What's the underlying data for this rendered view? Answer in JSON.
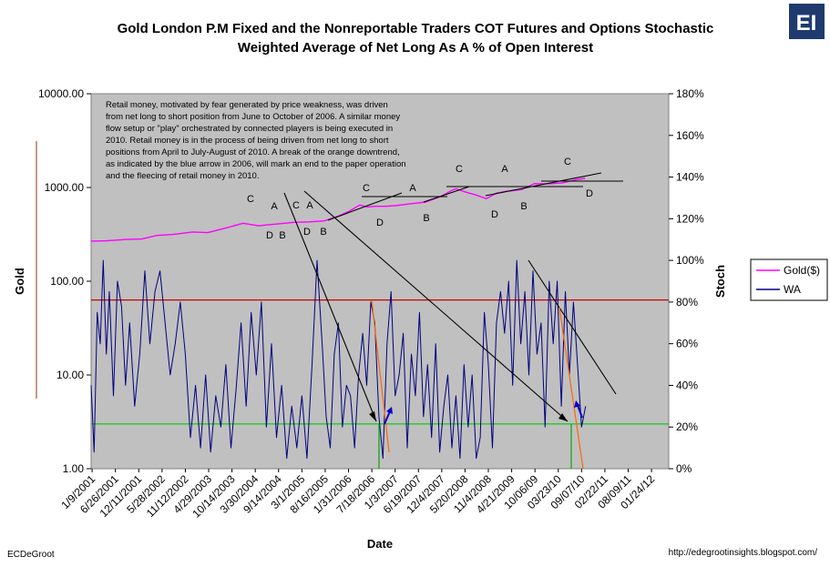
{
  "chart_data": {
    "type": "line",
    "title": [
      "Gold London P.M Fixed and the Nonreportable Traders COT Futures and Options Stochastic",
      "Weighted Average of Net Long As A % of Open Interest"
    ],
    "xlabel": "Date",
    "ylabel_left": "Gold",
    "ylabel_right": "Stoch",
    "y_left_scale": "log",
    "y_left_range": [
      1,
      10000
    ],
    "y_left_ticks": [
      "10000.00",
      "1000.00",
      "100.00",
      "10.00",
      "1.00"
    ],
    "y_right_range": [
      0,
      180
    ],
    "y_right_ticks": [
      "180%",
      "160%",
      "140%",
      "120%",
      "100%",
      "80%",
      "60%",
      "40%",
      "20%",
      "0%"
    ],
    "x_range": [
      2001.0,
      2012.4
    ],
    "x_ticks": [
      {
        "label": "1/9/2001",
        "t": 2001.02
      },
      {
        "label": "6/26/2001",
        "t": 2001.48
      },
      {
        "label": "12/11/2001",
        "t": 2001.94
      },
      {
        "label": "5/28/2002",
        "t": 2002.4
      },
      {
        "label": "11/12/2002",
        "t": 2002.86
      },
      {
        "label": "4/29/2003",
        "t": 2003.32
      },
      {
        "label": "10/14/2003",
        "t": 2003.78
      },
      {
        "label": "3/30/2004",
        "t": 2004.24
      },
      {
        "label": "9/14/2004",
        "t": 2004.7
      },
      {
        "label": "3/1/2005",
        "t": 2005.16
      },
      {
        "label": "8/16/2005",
        "t": 2005.62
      },
      {
        "label": "1/31/2006",
        "t": 2006.08
      },
      {
        "label": "7/18/2006",
        "t": 2006.54
      },
      {
        "label": "1/3/2007",
        "t": 2007.0
      },
      {
        "label": "6/19/2007",
        "t": 2007.46
      },
      {
        "label": "12/4/2007",
        "t": 2007.92
      },
      {
        "label": "5/20/2008",
        "t": 2008.38
      },
      {
        "label": "11/4/2008",
        "t": 2008.84
      },
      {
        "label": "4/21/2009",
        "t": 2009.3
      },
      {
        "label": "10/06/09",
        "t": 2009.76
      },
      {
        "label": "03/23/10",
        "t": 2010.22
      },
      {
        "label": "09/07/10",
        "t": 2010.68
      },
      {
        "label": "02/22/11",
        "t": 2011.14
      },
      {
        "label": "08/09/11",
        "t": 2011.6
      },
      {
        "label": "01/24/12",
        "t": 2012.06
      }
    ],
    "legend": [
      "Gold($)",
      "WA"
    ],
    "series": [
      {
        "name": "Gold($)",
        "axis": "left",
        "color": "#ff00ff",
        "x": [
          2001.0,
          2001.3,
          2001.7,
          2002.0,
          2002.3,
          2002.6,
          2003.0,
          2003.3,
          2003.7,
          2004.0,
          2004.3,
          2004.7,
          2005.0,
          2005.3,
          2005.6,
          2005.9,
          2006.1,
          2006.3,
          2006.45,
          2006.6,
          2006.8,
          2007.0,
          2007.3,
          2007.6,
          2007.9,
          2008.1,
          2008.2,
          2008.4,
          2008.6,
          2008.8,
          2009.0,
          2009.2,
          2009.5,
          2009.75,
          2010.0,
          2010.3,
          2010.6,
          2010.75
        ],
        "values": [
          268,
          270,
          279,
          282,
          308,
          315,
          335,
          330,
          375,
          415,
          390,
          410,
          425,
          430,
          440,
          500,
          560,
          650,
          620,
          630,
          630,
          640,
          670,
          700,
          800,
          920,
          970,
          890,
          830,
          760,
          870,
          910,
          950,
          1100,
          1090,
          1120,
          1220,
          1250
        ]
      },
      {
        "name": "WA",
        "axis": "right",
        "color": "#000080",
        "x": [
          2001.0,
          2001.06,
          2001.12,
          2001.18,
          2001.24,
          2001.3,
          2001.36,
          2001.44,
          2001.52,
          2001.6,
          2001.68,
          2001.76,
          2001.86,
          2001.96,
          2002.06,
          2002.16,
          2002.26,
          2002.36,
          2002.46,
          2002.56,
          2002.66,
          2002.76,
          2002.86,
          2002.96,
          2003.06,
          2003.16,
          2003.26,
          2003.36,
          2003.46,
          2003.56,
          2003.66,
          2003.76,
          2003.86,
          2003.96,
          2004.06,
          2004.16,
          2004.26,
          2004.36,
          2004.46,
          2004.56,
          2004.66,
          2004.76,
          2004.86,
          2004.96,
          2005.06,
          2005.16,
          2005.26,
          2005.36,
          2005.46,
          2005.56,
          2005.64,
          2005.72,
          2005.8,
          2005.88,
          2005.96,
          2006.04,
          2006.12,
          2006.2,
          2006.28,
          2006.36,
          2006.44,
          2006.52,
          2006.6,
          2006.68,
          2006.76,
          2006.84,
          2006.92,
          2007.0,
          2007.08,
          2007.16,
          2007.24,
          2007.32,
          2007.4,
          2007.48,
          2007.56,
          2007.64,
          2007.72,
          2007.8,
          2007.88,
          2007.96,
          2008.04,
          2008.12,
          2008.2,
          2008.28,
          2008.36,
          2008.44,
          2008.52,
          2008.6,
          2008.68,
          2008.76,
          2008.84,
          2008.92,
          2009.0,
          2009.08,
          2009.16,
          2009.24,
          2009.32,
          2009.4,
          2009.48,
          2009.56,
          2009.64,
          2009.72,
          2009.8,
          2009.88,
          2009.96,
          2010.04,
          2010.12,
          2010.2,
          2010.28,
          2010.36,
          2010.44,
          2010.52,
          2010.6,
          2010.68,
          2010.76
        ],
        "values": [
          40,
          8,
          75,
          60,
          100,
          55,
          85,
          35,
          90,
          78,
          40,
          70,
          30,
          55,
          95,
          60,
          85,
          95,
          70,
          45,
          60,
          80,
          55,
          15,
          40,
          10,
          45,
          8,
          35,
          20,
          50,
          10,
          38,
          70,
          30,
          75,
          45,
          80,
          20,
          60,
          15,
          40,
          5,
          30,
          10,
          35,
          5,
          50,
          100,
          60,
          25,
          10,
          55,
          70,
          20,
          40,
          35,
          10,
          45,
          65,
          40,
          80,
          70,
          25,
          5,
          60,
          85,
          35,
          45,
          65,
          10,
          55,
          35,
          75,
          25,
          50,
          15,
          60,
          8,
          30,
          45,
          10,
          35,
          5,
          50,
          20,
          45,
          5,
          15,
          75,
          50,
          10,
          70,
          85,
          65,
          90,
          40,
          100,
          60,
          85,
          45,
          95,
          55,
          70,
          20,
          90,
          60,
          90,
          30,
          85,
          45,
          80,
          50,
          20,
          30
        ]
      }
    ],
    "reference_lines": [
      {
        "axis": "right",
        "value": 81,
        "color": "#cc0000"
      },
      {
        "axis": "right",
        "value": 21.5,
        "color": "#00cc00"
      }
    ],
    "annotation_text": "Retail money, motivated by fear generated by price weakness, was driven from net long to short position from June to October of 2006.  A similar money flow setup or \"play\" orchestrated by connected players is being executed in 2010.  Retail money is in the process of being driven from net long to short positions from April to July-August of 2010.  A break of the orange downtrend, as indicated by the blue arrow in 2006, will mark an end to the paper operation and the fleecing of retail money in 2010.",
    "annotation_lines": [
      "Retail money, motivated by fear generated by price weakness, was driven",
      "from net long to short position from June to October of 2006.  A similar money",
      "flow setup or \"play\" orchestrated by connected players is being executed in",
      "2010.  Retail money is in the process of being driven from net long to short",
      "positions from April to July-August of 2010.  A break of the orange downtrend,",
      "as indicated by the blue arrow in 2006, will mark an end to the paper operation",
      "and the fleecing of retail money in 2010."
    ],
    "letter_labels": [
      "C",
      "A",
      "D",
      "B",
      "C",
      "A",
      "D",
      "B",
      "C",
      "A",
      "D",
      "B",
      "C",
      "A",
      "D",
      "B",
      "C",
      "D"
    ]
  },
  "footer": {
    "left": "ECDeGroot",
    "right": "http://edegrootinsights.blogspot.com/"
  },
  "logo": {
    "text": "EI",
    "color": "#1f3a6e"
  }
}
